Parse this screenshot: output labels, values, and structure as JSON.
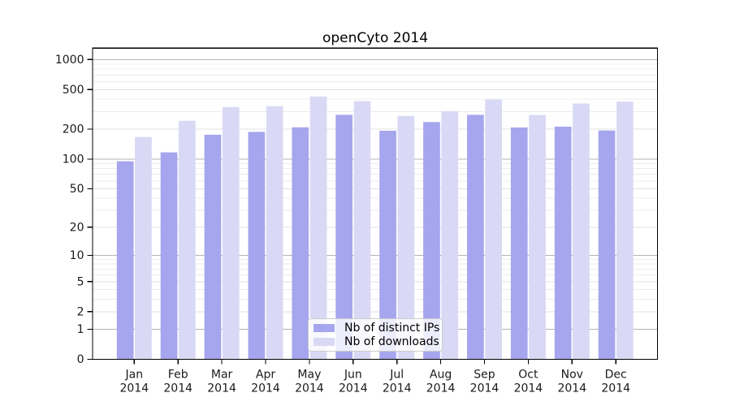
{
  "title": "openCyto 2014",
  "colors": {
    "ips_bar": "#a6a6ee",
    "downloads_bar": "#d9d9f6",
    "grid_decade": "#b4b4b4",
    "grid_submajor": "#e2e2e2",
    "grid_minor": "#ececec",
    "axis_frame": "#000000",
    "tick_text": "#1a1a1a",
    "legend_border": "#cccccc"
  },
  "chart_data": {
    "type": "bar",
    "title": "openCyto 2014",
    "categories": [
      "Jan",
      "Feb",
      "Mar",
      "Apr",
      "May",
      "Jun",
      "Jul",
      "Aug",
      "Sep",
      "Oct",
      "Nov",
      "Dec"
    ],
    "x_year": "2014",
    "series": [
      {
        "name": "Nb of distinct IPs",
        "values": [
          95,
          117,
          176,
          188,
          209,
          279,
          193,
          236,
          279,
          208,
          212,
          194
        ]
      },
      {
        "name": "Nb of downloads",
        "values": [
          167,
          243,
          334,
          341,
          426,
          383,
          272,
          304,
          397,
          278,
          362,
          378
        ]
      }
    ],
    "yscale": "log1p",
    "ylim": [
      0,
      1300
    ],
    "yticks": [
      0,
      1,
      2,
      5,
      10,
      20,
      50,
      100,
      200,
      500,
      1000
    ],
    "minor_gridlines": [
      3,
      4,
      6,
      7,
      8,
      9,
      30,
      40,
      60,
      70,
      80,
      90,
      300,
      400,
      600,
      700,
      800,
      900
    ],
    "grid": true,
    "legend_position": "lower center",
    "xlabel": "",
    "ylabel": ""
  }
}
